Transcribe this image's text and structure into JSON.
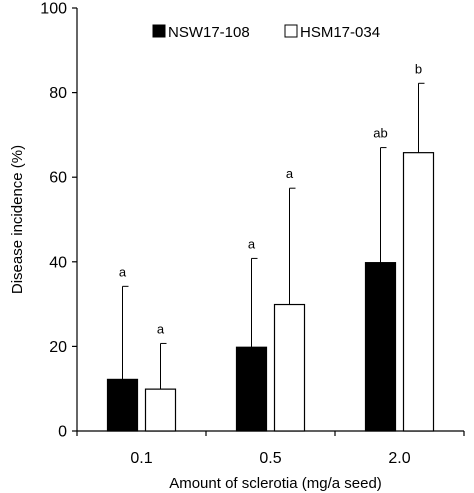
{
  "chart_data": {
    "type": "bar",
    "title": "",
    "xlabel": "Amount of sclerotia (mg/a seed)",
    "ylabel": "Disease incidence  (%)",
    "ylim": [
      0,
      100
    ],
    "yticks": [
      "0",
      "20",
      "40",
      "60",
      "80",
      "100"
    ],
    "categories": [
      "0.1",
      "0.5",
      "2.0"
    ],
    "legend_position": "top",
    "grid": false,
    "series": [
      {
        "name": "NSW17-108",
        "color": "#000000",
        "values": [
          12.2,
          19.8,
          39.8
        ],
        "errors": [
          22.0,
          21.0,
          27.2
        ],
        "labels": [
          "a",
          "a",
          "ab"
        ]
      },
      {
        "name": "HSM17-034",
        "color": "#ffffff",
        "values": [
          9.9,
          29.9,
          65.8
        ],
        "errors": [
          10.8,
          27.5,
          16.4
        ],
        "labels": [
          "a",
          "a",
          "b"
        ]
      }
    ]
  }
}
